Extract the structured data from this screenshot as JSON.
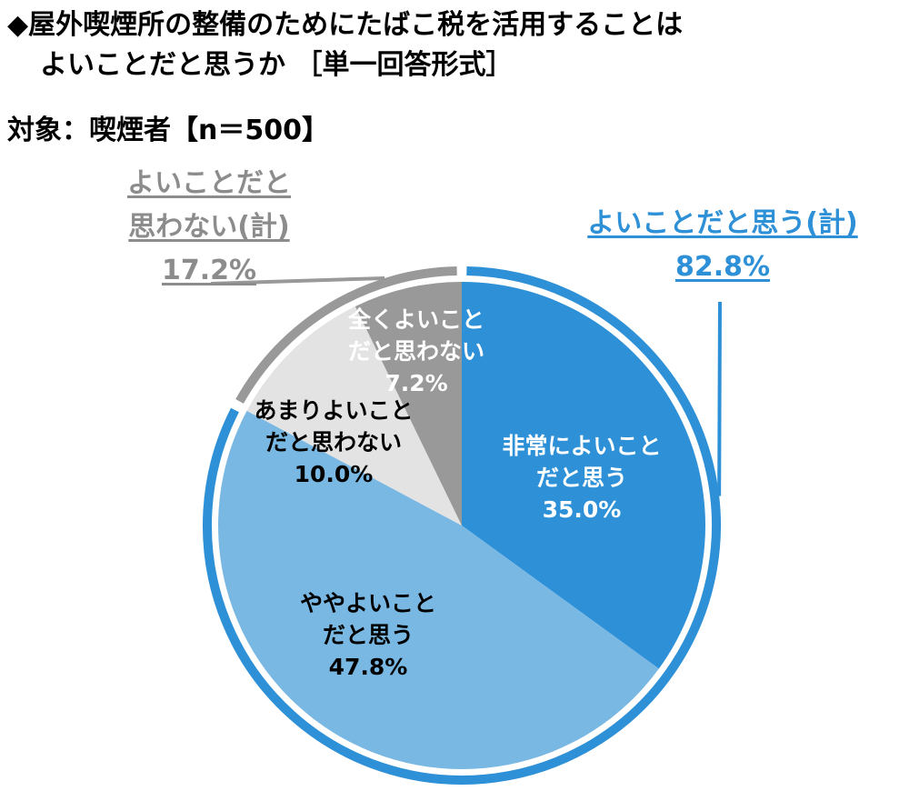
{
  "title_line1": "◆屋外喫煙所の整備のためにたばこ税を活用することは",
  "title_line2": "よいことだと思うか ［単一回答形式］",
  "target": "対象：喫煙者【n＝500】",
  "chart_data": {
    "type": "pie",
    "start": "12 o'clock, clockwise",
    "slices": [
      {
        "label_lines": [
          "非常によいこと",
          "だと思う"
        ],
        "value": 35.0,
        "value_label": "35.0%",
        "color": "#2e90d6",
        "text_color": "#ffffff"
      },
      {
        "label_lines": [
          "ややよいこと",
          "だと思う"
        ],
        "value": 47.8,
        "value_label": "47.8%",
        "color": "#7ab8e4",
        "text_color": "#000000"
      },
      {
        "label_lines": [
          "あまりよいこと",
          "だと思わない"
        ],
        "value": 10.0,
        "value_label": "10.0%",
        "color": "#e3e3e3",
        "text_color": "#000000"
      },
      {
        "label_lines": [
          "全くよいこと",
          "だと思わない"
        ],
        "value": 7.2,
        "value_label": "7.2%",
        "color": "#999999",
        "text_color": "#ffffff"
      }
    ],
    "groups": [
      {
        "label_lines": [
          "よいことだと思う(計)"
        ],
        "value": 82.8,
        "value_label": "82.8%",
        "color": "#2e90d6",
        "slices": [
          0,
          1
        ]
      },
      {
        "label_lines": [
          "よいことだと",
          "思わない(計)"
        ],
        "value": 17.2,
        "value_label": "17.2%",
        "color": "#999999",
        "slices": [
          2,
          3
        ]
      }
    ]
  }
}
